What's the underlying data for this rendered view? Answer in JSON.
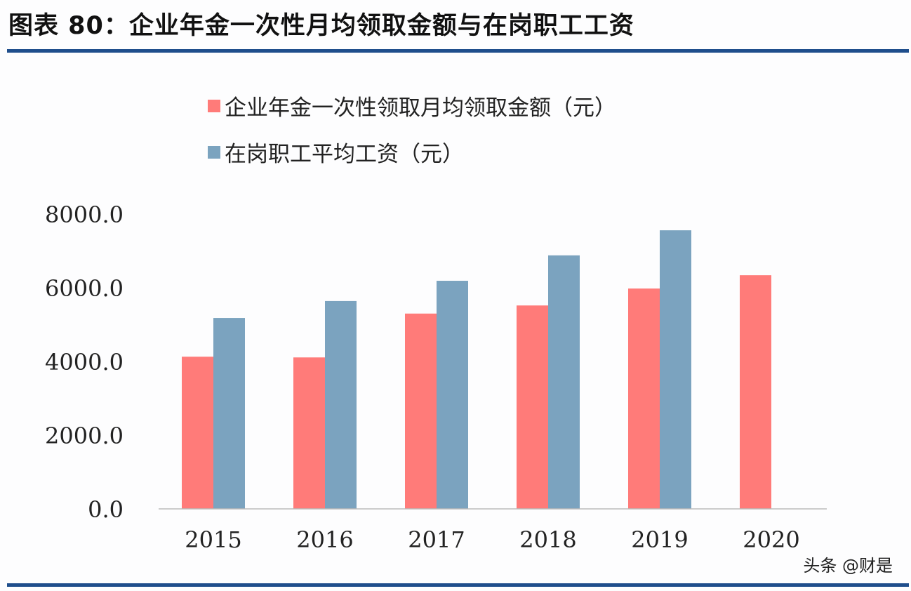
{
  "title": "图表 80：企业年金一次性月均领取金额与在岗职工工资",
  "watermark": "头条 @财是",
  "colors": {
    "rule": "#1f4e8c",
    "series1": "#ff7b79",
    "series2": "#7ba3bf"
  },
  "chart_data": {
    "type": "bar",
    "title": "",
    "xlabel": "",
    "ylabel": "",
    "categories": [
      "2015",
      "2016",
      "2017",
      "2018",
      "2019",
      "2020"
    ],
    "series": [
      {
        "name": "企业年金一次性领取月均领取金额（元）",
        "values": [
          4130,
          4110,
          5300,
          5520,
          5980,
          6340
        ],
        "color": "#ff7b79"
      },
      {
        "name": "在岗职工平均工资（元）",
        "values": [
          5180,
          5640,
          6190,
          6880,
          7560,
          null
        ],
        "color": "#7ba3bf"
      }
    ],
    "ylim": [
      0,
      8000
    ],
    "yticks": [
      "0.0",
      "2000.0",
      "4000.0",
      "6000.0",
      "8000.0"
    ],
    "grid": false,
    "legend": "top-left"
  }
}
